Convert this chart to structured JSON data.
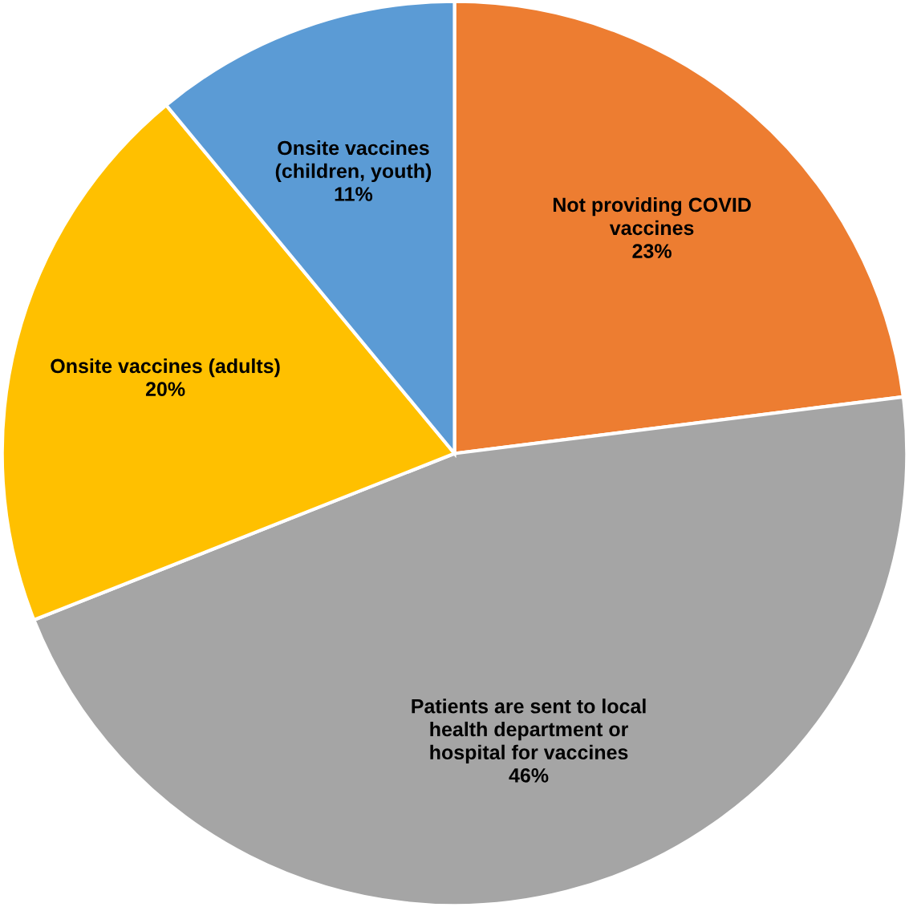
{
  "chart_data": {
    "type": "pie",
    "categories": [
      "Not providing COVID\nvaccines",
      "Patients are sent to local\nhealth department or\nhospital for vaccines",
      "Onsite vaccines (adults)",
      "Onsite vaccines\n(children, youth)"
    ],
    "values": [
      23,
      46,
      20,
      11
    ],
    "value_labels": [
      "23%",
      "46%",
      "20%",
      "11%"
    ],
    "colors": [
      "#ed7d31",
      "#a5a5a5",
      "#ffc000",
      "#5b9bd5"
    ],
    "legend": false
  }
}
